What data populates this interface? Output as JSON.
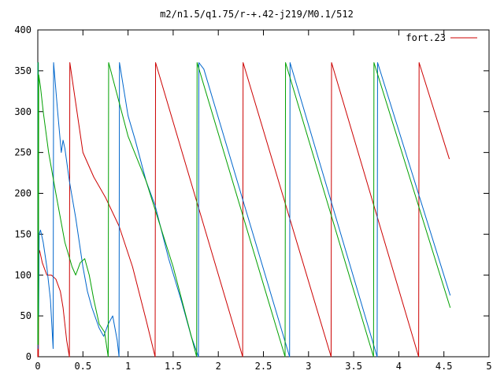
{
  "chart_data": {
    "type": "line",
    "title": "m2/n1.5/q1.75/r-+.42-j219/M0.1/512",
    "xlabel": "",
    "ylabel": "",
    "xlim": [
      0,
      5
    ],
    "ylim": [
      0,
      400
    ],
    "x_ticks": [
      "0",
      "0.5",
      "1",
      "1.5",
      "2",
      "2.5",
      "3",
      "3.5",
      "4",
      "4.5",
      "5"
    ],
    "y_ticks": [
      "0",
      "50",
      "100",
      "150",
      "200",
      "250",
      "300",
      "350",
      "400"
    ],
    "grid": false,
    "legend_position": "top-right",
    "series": [
      {
        "name": "fort.23",
        "color": "#cc0000",
        "legend": true,
        "points": [
          [
            0,
            0
          ],
          [
            0.003,
            360
          ],
          [
            0.007,
            0
          ],
          [
            0.01,
            125
          ],
          [
            0.02,
            130
          ],
          [
            0.05,
            115
          ],
          [
            0.1,
            100
          ],
          [
            0.15,
            100
          ],
          [
            0.2,
            95
          ],
          [
            0.25,
            80
          ],
          [
            0.28,
            60
          ],
          [
            0.32,
            20
          ],
          [
            0.35,
            0
          ],
          [
            0.355,
            360
          ],
          [
            0.5,
            250
          ],
          [
            0.62,
            220
          ],
          [
            0.75,
            195
          ],
          [
            0.9,
            160
          ],
          [
            1.05,
            110
          ],
          [
            1.2,
            45
          ],
          [
            1.3,
            0
          ],
          [
            1.305,
            360
          ],
          [
            2.27,
            0
          ],
          [
            2.275,
            360
          ],
          [
            3.25,
            0
          ],
          [
            3.255,
            360
          ],
          [
            4.22,
            0
          ],
          [
            4.225,
            360
          ],
          [
            4.56,
            242
          ]
        ]
      },
      {
        "name": "",
        "color": "#0066cc",
        "legend": false,
        "points": [
          [
            0,
            360
          ],
          [
            0.003,
            10
          ],
          [
            0.006,
            360
          ],
          [
            0.009,
            50
          ],
          [
            0.015,
            150
          ],
          [
            0.03,
            155
          ],
          [
            0.06,
            140
          ],
          [
            0.1,
            110
          ],
          [
            0.14,
            70
          ],
          [
            0.17,
            10
          ],
          [
            0.175,
            360
          ],
          [
            0.22,
            300
          ],
          [
            0.26,
            250
          ],
          [
            0.28,
            265
          ],
          [
            0.3,
            255
          ],
          [
            0.35,
            215
          ],
          [
            0.42,
            170
          ],
          [
            0.5,
            110
          ],
          [
            0.55,
            80
          ],
          [
            0.6,
            60
          ],
          [
            0.68,
            35
          ],
          [
            0.73,
            25
          ],
          [
            0.78,
            40
          ],
          [
            0.83,
            50
          ],
          [
            0.88,
            20
          ],
          [
            0.9,
            0
          ],
          [
            0.905,
            360
          ],
          [
            1.0,
            295
          ],
          [
            1.08,
            265
          ],
          [
            1.2,
            215
          ],
          [
            1.3,
            185
          ],
          [
            1.45,
            120
          ],
          [
            1.6,
            65
          ],
          [
            1.7,
            25
          ],
          [
            1.78,
            0
          ],
          [
            1.785,
            360
          ],
          [
            1.84,
            352
          ],
          [
            2.79,
            0
          ],
          [
            2.795,
            360
          ],
          [
            3.76,
            0
          ],
          [
            3.765,
            360
          ],
          [
            4.57,
            75
          ]
        ]
      },
      {
        "name": "",
        "color": "#00a000",
        "legend": false,
        "points": [
          [
            0,
            15
          ],
          [
            0.003,
            360
          ],
          [
            0.006,
            15
          ],
          [
            0.01,
            345
          ],
          [
            0.03,
            330
          ],
          [
            0.06,
            300
          ],
          [
            0.12,
            250
          ],
          [
            0.2,
            200
          ],
          [
            0.3,
            140
          ],
          [
            0.38,
            110
          ],
          [
            0.42,
            100
          ],
          [
            0.47,
            115
          ],
          [
            0.52,
            120
          ],
          [
            0.57,
            100
          ],
          [
            0.62,
            70
          ],
          [
            0.68,
            40
          ],
          [
            0.74,
            30
          ],
          [
            0.78,
            0
          ],
          [
            0.785,
            360
          ],
          [
            1.0,
            270
          ],
          [
            1.2,
            215
          ],
          [
            1.5,
            110
          ],
          [
            1.76,
            0
          ],
          [
            1.765,
            360
          ],
          [
            2.74,
            0
          ],
          [
            2.745,
            360
          ],
          [
            3.72,
            0
          ],
          [
            3.725,
            360
          ],
          [
            4.57,
            60
          ]
        ]
      }
    ]
  }
}
